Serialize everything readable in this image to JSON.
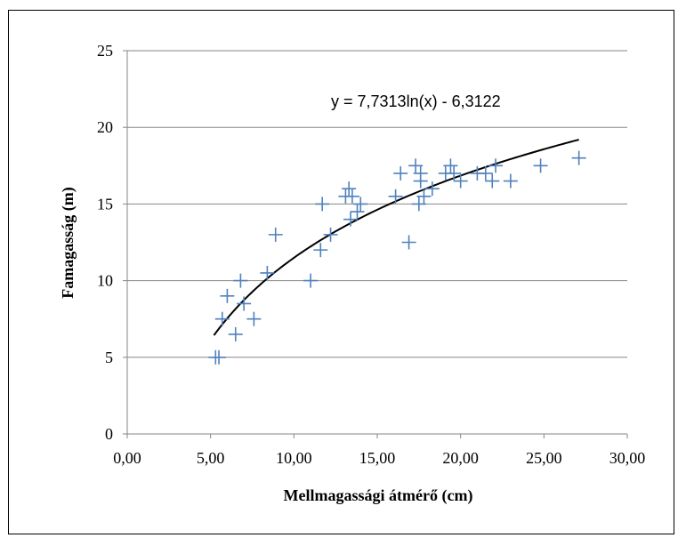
{
  "chart_data": {
    "type": "scatter",
    "title": "",
    "xlabel": "Mellmagassági átmérő (cm)",
    "ylabel": "Famagasság (m)",
    "xlim": [
      0,
      30
    ],
    "ylim": [
      0,
      25
    ],
    "x_ticks": [
      0,
      5,
      10,
      15,
      20,
      25,
      30
    ],
    "y_ticks": [
      0,
      5,
      10,
      15,
      20,
      25
    ],
    "x_tick_labels": [
      "0,00",
      "5,00",
      "10,00",
      "15,00",
      "20,00",
      "25,00",
      "30,00"
    ],
    "y_tick_labels": [
      "0",
      "5",
      "10",
      "15",
      "20",
      "25"
    ],
    "grid": "horizontal",
    "legend": "none",
    "marker": "+",
    "marker_color": "#4F81BD",
    "trendline_color": "#000000",
    "series": [
      {
        "points": [
          [
            5.3,
            5.0
          ],
          [
            5.5,
            5.0
          ],
          [
            5.7,
            7.5
          ],
          [
            6.0,
            9.0
          ],
          [
            6.5,
            6.5
          ],
          [
            6.8,
            10.0
          ],
          [
            7.0,
            8.5
          ],
          [
            7.6,
            7.5
          ],
          [
            8.4,
            10.5
          ],
          [
            8.9,
            13.0
          ],
          [
            11.0,
            10.0
          ],
          [
            11.6,
            12.0
          ],
          [
            11.7,
            15.0
          ],
          [
            12.2,
            13.0
          ],
          [
            13.1,
            15.5
          ],
          [
            13.3,
            16.0
          ],
          [
            13.4,
            14.0
          ],
          [
            13.5,
            15.5
          ],
          [
            13.8,
            14.5
          ],
          [
            14.0,
            15.0
          ],
          [
            16.1,
            15.5
          ],
          [
            16.4,
            17.0
          ],
          [
            16.9,
            12.5
          ],
          [
            17.3,
            17.5
          ],
          [
            17.5,
            15.0
          ],
          [
            17.6,
            16.5
          ],
          [
            17.6,
            17.0
          ],
          [
            17.8,
            15.5
          ],
          [
            18.3,
            16.0
          ],
          [
            19.1,
            17.0
          ],
          [
            19.4,
            17.5
          ],
          [
            19.6,
            17.0
          ],
          [
            20.0,
            16.5
          ],
          [
            21.0,
            17.0
          ],
          [
            21.5,
            17.0
          ],
          [
            21.9,
            16.5
          ],
          [
            22.1,
            17.5
          ],
          [
            23.0,
            16.5
          ],
          [
            24.8,
            17.5
          ],
          [
            27.1,
            18.0
          ]
        ]
      }
    ],
    "trendline": {
      "type": "logarithmic",
      "a": 7.7313,
      "b": -6.3122,
      "x_range": [
        5.2,
        27.1
      ],
      "equation_label": "y = 7,7313ln(x) - 6,3122"
    }
  }
}
